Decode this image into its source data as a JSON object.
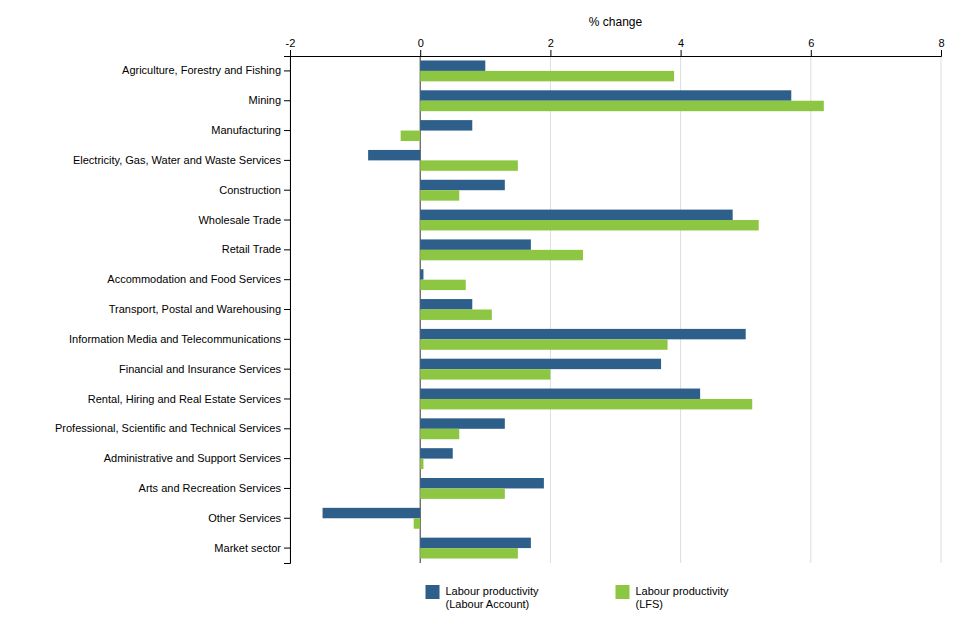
{
  "chart_data": {
    "type": "bar",
    "orientation": "horizontal",
    "categories": [
      "Agriculture, Forestry and Fishing",
      "Mining",
      "Manufacturing",
      "Electricity, Gas, Water and Waste Services",
      "Construction",
      "Wholesale Trade",
      "Retail Trade",
      "Accommodation and Food Services",
      "Transport, Postal and Warehousing",
      "Information Media and Telecommunications",
      "Financial and Insurance Services",
      "Rental, Hiring and Real Estate Services",
      "Professional, Scientific and Technical Services",
      "Administrative and Support Services",
      "Arts and Recreation Services",
      "Other Services",
      "Market sector"
    ],
    "series": [
      {
        "name": "Labour productivity\n(Labour Account)",
        "color": "#2E5F8A",
        "values": [
          1.0,
          5.7,
          0.8,
          -0.8,
          1.3,
          4.8,
          1.7,
          0.05,
          0.8,
          5.0,
          3.7,
          4.3,
          1.3,
          0.5,
          1.9,
          -1.5,
          1.7
        ]
      },
      {
        "name": "Labour productivity\n(LFS)",
        "color": "#8DC642",
        "values": [
          3.9,
          6.2,
          -0.3,
          1.5,
          0.6,
          5.2,
          2.5,
          0.7,
          1.1,
          3.8,
          2.0,
          5.1,
          0.6,
          0.05,
          1.3,
          -0.1,
          1.5
        ]
      }
    ],
    "xlabel": "% change",
    "xlim": [
      -2,
      8
    ],
    "xticks": [
      -2,
      0,
      2,
      4,
      6,
      8
    ],
    "grid": true,
    "legend": "bottom"
  }
}
